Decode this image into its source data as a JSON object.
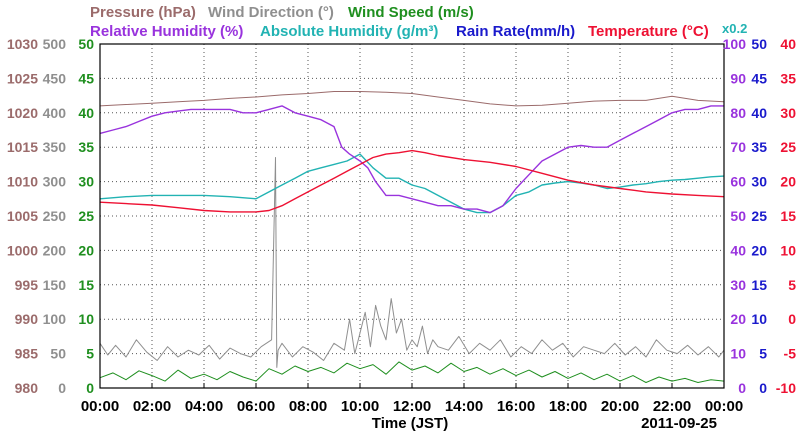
{
  "colors": {
    "pressure": "#9b6b6b",
    "wind_direction": "#8f8f8f",
    "wind_speed": "#1f8f1f",
    "humidity": "#9933dd",
    "abs_humidity": "#22b3b3",
    "rain": "#1a1acc",
    "temperature": "#ee1133",
    "grid": "#555555",
    "axis": "#000000"
  },
  "chart_data": {
    "type": "line",
    "date": "2011-09-25",
    "grid": true,
    "xlabel": "Time (JST)",
    "x_range_hours": [
      0,
      24
    ],
    "x_ticks": [
      "00:00",
      "02:00",
      "04:00",
      "06:00",
      "08:00",
      "10:00",
      "12:00",
      "14:00",
      "16:00",
      "18:00",
      "20:00",
      "22:00",
      "00:00"
    ],
    "multiplier_note": "x0.2",
    "series": [
      {
        "key": "pressure",
        "name": "Pressure (hPa)",
        "range": [
          980,
          1030
        ],
        "ticks": [
          "1030",
          "1025",
          "1020",
          "1015",
          "1010",
          "1005",
          "1000",
          "995",
          "990",
          "985",
          "980"
        ],
        "x": [
          0,
          1,
          2,
          3,
          4,
          5,
          6,
          7,
          8,
          9,
          10,
          11,
          12,
          13,
          14,
          15,
          16,
          17,
          18,
          19,
          20,
          21,
          22,
          23,
          24
        ],
        "values": [
          1021,
          1021.2,
          1021.4,
          1021.6,
          1021.8,
          1022.1,
          1022.3,
          1022.6,
          1022.8,
          1023.1,
          1023.1,
          1023,
          1022.8,
          1022.3,
          1021.8,
          1021.3,
          1021,
          1021.1,
          1021.4,
          1021.7,
          1021.8,
          1021.8,
          1022.4,
          1021.8,
          1021.6
        ]
      },
      {
        "key": "wind_direction",
        "name": "Wind Direction (°)",
        "range": [
          0,
          500
        ],
        "ticks": [
          "500",
          "450",
          "400",
          "350",
          "300",
          "250",
          "200",
          "150",
          "100",
          "50",
          "0"
        ],
        "x": [
          0,
          0.3,
          0.6,
          1,
          1.4,
          1.8,
          2.2,
          2.6,
          3,
          3.4,
          3.8,
          4.2,
          4.6,
          5,
          5.4,
          5.8,
          6.2,
          6.6,
          6.75,
          6.8,
          6.85,
          7,
          7.4,
          7.8,
          8.2,
          8.6,
          9,
          9.4,
          9.6,
          9.8,
          10,
          10.2,
          10.4,
          10.6,
          10.8,
          11,
          11.2,
          11.4,
          11.6,
          11.8,
          12,
          12.2,
          12.4,
          12.6,
          12.8,
          13,
          13.4,
          13.8,
          14.2,
          14.6,
          15,
          15.4,
          15.8,
          16.2,
          16.6,
          17,
          17.4,
          17.8,
          18.2,
          18.6,
          19,
          19.4,
          19.8,
          20.2,
          20.6,
          21,
          21.4,
          21.8,
          22.2,
          22.6,
          23,
          23.4,
          23.8,
          24
        ],
        "values": [
          65,
          48,
          62,
          45,
          70,
          52,
          40,
          60,
          45,
          55,
          48,
          62,
          42,
          58,
          50,
          45,
          60,
          70,
          335,
          30,
          55,
          65,
          45,
          60,
          52,
          40,
          65,
          55,
          100,
          50,
          80,
          110,
          60,
          120,
          90,
          70,
          130,
          80,
          100,
          55,
          70,
          60,
          90,
          50,
          70,
          60,
          55,
          75,
          50,
          65,
          55,
          70,
          45,
          60,
          50,
          70,
          55,
          65,
          45,
          60,
          55,
          50,
          65,
          48,
          60,
          45,
          70,
          55,
          50,
          62,
          48,
          60,
          45,
          55
        ]
      },
      {
        "key": "wind_speed",
        "name": "Wind Speed (m/s)",
        "range": [
          0,
          50
        ],
        "ticks": [
          "50",
          "45",
          "40",
          "35",
          "30",
          "25",
          "20",
          "15",
          "10",
          "5",
          "0"
        ],
        "x": [
          0,
          0.5,
          1,
          1.5,
          2,
          2.5,
          3,
          3.5,
          4,
          4.5,
          5,
          5.5,
          6,
          6.5,
          7,
          7.5,
          8,
          8.5,
          9,
          9.5,
          10,
          10.5,
          11,
          11.5,
          12,
          12.5,
          13,
          13.5,
          14,
          14.5,
          15,
          15.5,
          16,
          16.5,
          17,
          17.5,
          18,
          18.5,
          19,
          19.5,
          20,
          20.5,
          21,
          21.5,
          22,
          22.5,
          23,
          23.5,
          24
        ],
        "values": [
          1.5,
          2.2,
          1.2,
          2.5,
          1.8,
          1.0,
          2.6,
          1.4,
          2.0,
          1.2,
          2.4,
          1.6,
          1.0,
          2.8,
          2.0,
          3.2,
          2.4,
          3.0,
          2.2,
          3.6,
          2.8,
          3.4,
          2.0,
          3.8,
          2.6,
          3.2,
          2.2,
          3.6,
          2.4,
          3.0,
          2.0,
          2.8,
          1.8,
          2.6,
          1.6,
          2.4,
          1.4,
          2.2,
          1.2,
          2.0,
          1.0,
          1.8,
          0.8,
          1.6,
          1.0,
          1.4,
          0.8,
          1.2,
          1.0
        ]
      },
      {
        "key": "humidity",
        "name": "Relative Humidity (%)",
        "range": [
          0,
          100
        ],
        "ticks": [
          "100",
          "90",
          "80",
          "70",
          "60",
          "50",
          "40",
          "30",
          "20",
          "10",
          "0"
        ],
        "x": [
          0,
          0.5,
          1,
          1.5,
          2,
          2.5,
          3,
          3.5,
          4,
          4.5,
          5,
          5.5,
          6,
          6.5,
          7,
          7.5,
          8,
          8.5,
          9,
          9.3,
          9.6,
          10,
          10.3,
          10.6,
          11,
          11.5,
          12,
          12.5,
          13,
          13.5,
          14,
          14.5,
          15,
          15.5,
          16,
          16.5,
          17,
          17.5,
          18,
          18.5,
          19,
          19.5,
          20,
          20.5,
          21,
          21.5,
          22,
          22.5,
          23,
          23.5,
          24
        ],
        "values": [
          74,
          75,
          76,
          77.5,
          79,
          80,
          80.5,
          81,
          81,
          81,
          81,
          80,
          80,
          81,
          82,
          80,
          79,
          78,
          76,
          70,
          68,
          66,
          64,
          60,
          56,
          56,
          55,
          54,
          53,
          53,
          52,
          52,
          51,
          53,
          58,
          62,
          66,
          68,
          70,
          70.5,
          70,
          70,
          72,
          74,
          76,
          78,
          80,
          81,
          81,
          82,
          82
        ]
      },
      {
        "key": "abs_humidity",
        "name": "Absolute Humidity (g/m³)",
        "range": [
          0,
          50
        ],
        "ticks": [],
        "x": [
          0,
          1,
          2,
          3,
          4,
          5,
          6,
          6.5,
          7,
          7.5,
          8,
          8.5,
          9,
          9.5,
          10,
          10.5,
          11,
          11.5,
          12,
          12.5,
          13,
          13.5,
          14,
          14.5,
          15,
          15.5,
          16,
          16.5,
          17,
          17.5,
          18,
          18.5,
          19,
          19.5,
          20,
          20.5,
          21,
          21.5,
          22,
          22.5,
          23,
          23.5,
          24
        ],
        "values": [
          27.5,
          27.8,
          28,
          28,
          28,
          27.8,
          27.5,
          28.5,
          29.5,
          30.5,
          31.5,
          32,
          32.5,
          33,
          34,
          32,
          30.5,
          30.5,
          29.5,
          29,
          28,
          27,
          26,
          25.5,
          25.5,
          26.5,
          28,
          28.5,
          29.5,
          29.8,
          30,
          29.8,
          29.5,
          29,
          29.2,
          29.5,
          29.7,
          30,
          30.2,
          30.3,
          30.5,
          30.7,
          30.8
        ]
      },
      {
        "key": "rain",
        "name": "Rain Rate(mm/h)",
        "range": [
          0,
          50
        ],
        "ticks": [
          "50",
          "45",
          "40",
          "35",
          "30",
          "25",
          "20",
          "15",
          "10",
          "5",
          "0"
        ],
        "x": [
          0,
          24
        ],
        "values": [
          0,
          0
        ]
      },
      {
        "key": "temperature",
        "name": "Temperature (°C)",
        "range": [
          -10,
          40
        ],
        "ticks": [
          "40",
          "35",
          "30",
          "25",
          "20",
          "15",
          "10",
          "5",
          "0",
          "-5",
          "-10"
        ],
        "x": [
          0,
          1,
          2,
          3,
          4,
          5,
          6,
          6.5,
          7,
          7.5,
          8,
          8.5,
          9,
          9.5,
          10,
          10.5,
          11,
          11.5,
          12,
          12.5,
          13,
          14,
          15,
          16,
          17,
          18,
          19,
          20,
          21,
          22,
          23,
          24
        ],
        "values": [
          17,
          16.8,
          16.6,
          16.2,
          15.8,
          15.6,
          15.6,
          15.8,
          16.5,
          17.5,
          18.5,
          19.5,
          20.5,
          21.5,
          22.5,
          23.5,
          24,
          24.2,
          24.5,
          24.2,
          23.8,
          23.2,
          22.8,
          22.2,
          21.2,
          20.2,
          19.5,
          19,
          18.5,
          18.2,
          18,
          17.8
        ]
      }
    ]
  }
}
